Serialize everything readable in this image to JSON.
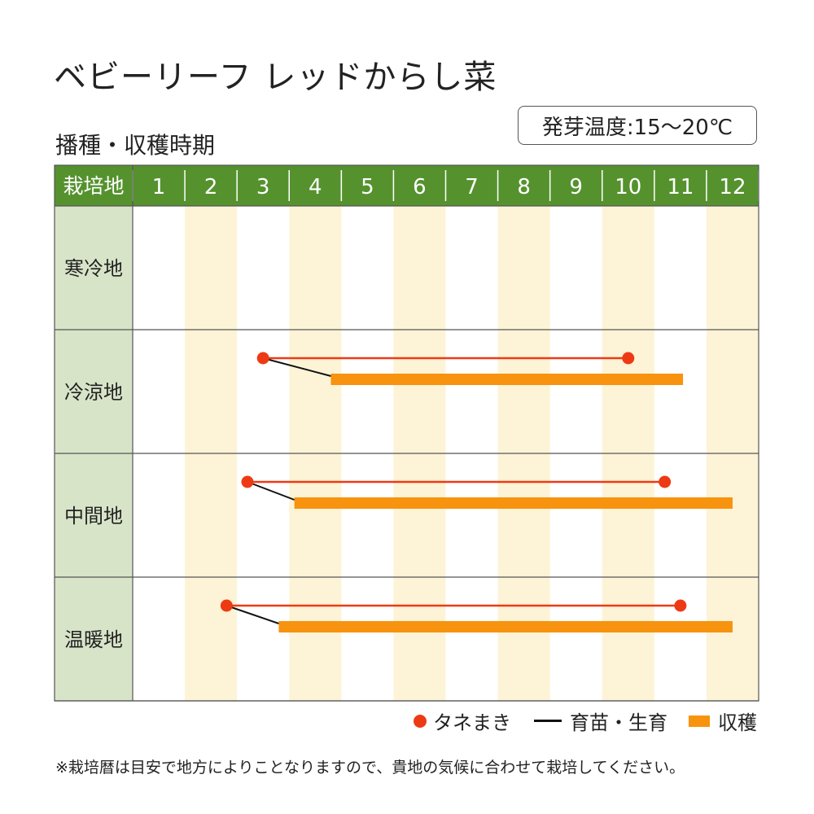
{
  "page": {
    "title": "ベビーリーフ レッドからし菜",
    "subtitle": "播種・収穫時期",
    "germination_temp": "発芽温度:15〜20℃",
    "note": "※栽培暦は目安で地方によりことなりますので、貴地の気候に合わせて栽培してください。"
  },
  "chart_data": {
    "type": "table",
    "corner_label": "栽培地",
    "months": [
      "1",
      "2",
      "3",
      "4",
      "5",
      "6",
      "7",
      "8",
      "9",
      "10",
      "11",
      "12"
    ],
    "regions": [
      {
        "label": "寒冷地",
        "sowing": null,
        "harvest": null
      },
      {
        "label": "冷涼地",
        "sowing": [
          3.5,
          10.5
        ],
        "harvest": [
          4.8,
          11.55
        ]
      },
      {
        "label": "中間地",
        "sowing": [
          3.2,
          11.2
        ],
        "harvest": [
          4.1,
          12.5
        ]
      },
      {
        "label": "温暖地",
        "sowing": [
          2.8,
          11.5
        ],
        "harvest": [
          3.8,
          12.5
        ]
      }
    ],
    "legend": {
      "sowing": "タネまき",
      "seedling": "育苗・生育",
      "harvest": "収穫"
    },
    "colors": {
      "header_green": "#55922e",
      "label_column": "#d8e4c8",
      "stripe": "#fdf3d6",
      "sowing_red": "#ee3a14",
      "harvest_orange": "#f7930f"
    }
  }
}
